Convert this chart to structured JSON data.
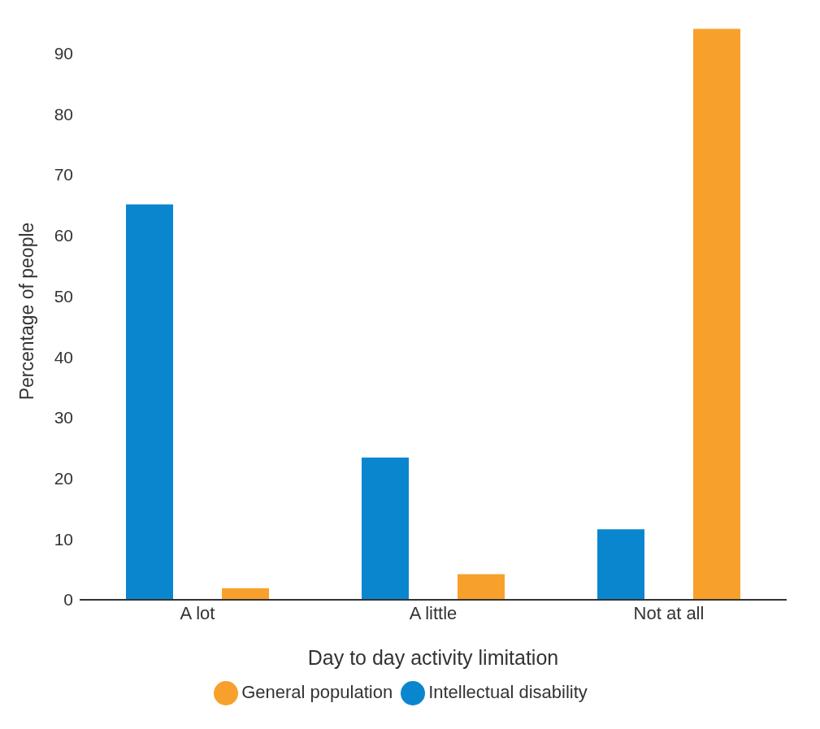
{
  "chart_data": {
    "type": "bar",
    "xlabel": "Day to day activity limitation",
    "ylabel": "Percentage of people",
    "categories": [
      "A lot",
      "A little",
      "Not at all"
    ],
    "series": [
      {
        "name": "Intellectual disability",
        "color": "#0a86cf",
        "values": [
          65.1,
          23.4,
          11.6
        ]
      },
      {
        "name": "General population",
        "color": "#f7a12c",
        "values": [
          1.9,
          4.2,
          94.0
        ]
      }
    ],
    "ylim": [
      0,
      95
    ],
    "yticks": [
      0,
      10,
      20,
      30,
      40,
      50,
      60,
      70,
      80,
      90
    ],
    "grid": false,
    "legend": "bottom"
  }
}
